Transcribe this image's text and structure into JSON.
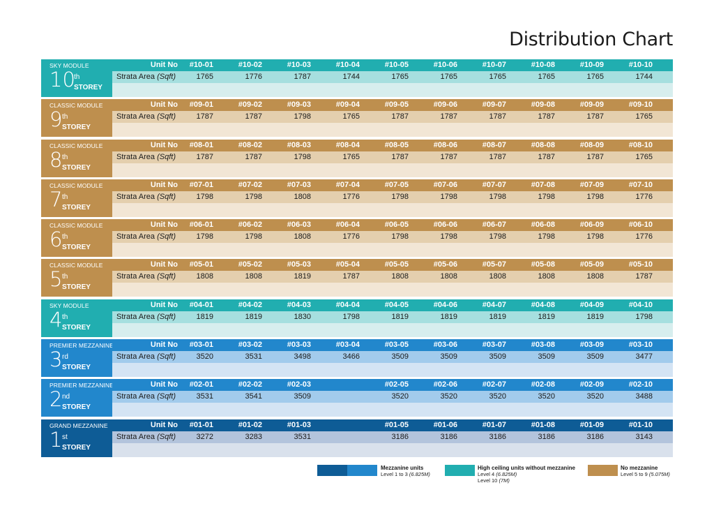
{
  "title": "Distribution Chart",
  "labels": {
    "unit_no": "Unit No",
    "strata_area": "Strata Area ",
    "strata_unit": "(Sqft)",
    "storey_word": "STOREY"
  },
  "colors": {
    "sky": "#21aeb0",
    "classic": "#be8f4e",
    "premier": "#2287cc",
    "grand": "#0e5c96"
  },
  "floors": [
    {
      "theme": "sky",
      "module": "SKY MODULE",
      "num": "10",
      "suffix": "th",
      "units": [
        "#10-01",
        "#10-02",
        "#10-03",
        "#10-04",
        "#10-05",
        "#10-06",
        "#10-07",
        "#10-08",
        "#10-09",
        "#10-10"
      ],
      "areas": [
        "1765",
        "1776",
        "1787",
        "1744",
        "1765",
        "1765",
        "1765",
        "1765",
        "1765",
        "1744"
      ]
    },
    {
      "theme": "classic",
      "module": "CLASSIC MODULE",
      "num": "9",
      "suffix": "th",
      "units": [
        "#09-01",
        "#09-02",
        "#09-03",
        "#09-04",
        "#09-05",
        "#09-06",
        "#09-07",
        "#09-08",
        "#09-09",
        "#09-10"
      ],
      "areas": [
        "1787",
        "1787",
        "1798",
        "1765",
        "1787",
        "1787",
        "1787",
        "1787",
        "1787",
        "1765"
      ]
    },
    {
      "theme": "classic",
      "module": "CLASSIC MODULE",
      "num": "8",
      "suffix": "th",
      "units": [
        "#08-01",
        "#08-02",
        "#08-03",
        "#08-04",
        "#08-05",
        "#08-06",
        "#08-07",
        "#08-08",
        "#08-09",
        "#08-10"
      ],
      "areas": [
        "1787",
        "1787",
        "1798",
        "1765",
        "1787",
        "1787",
        "1787",
        "1787",
        "1787",
        "1765"
      ]
    },
    {
      "theme": "classic",
      "module": "CLASSIC MODULE",
      "num": "7",
      "suffix": "th",
      "units": [
        "#07-01",
        "#07-02",
        "#07-03",
        "#07-04",
        "#07-05",
        "#07-06",
        "#07-07",
        "#07-08",
        "#07-09",
        "#07-10"
      ],
      "areas": [
        "1798",
        "1798",
        "1808",
        "1776",
        "1798",
        "1798",
        "1798",
        "1798",
        "1798",
        "1776"
      ]
    },
    {
      "theme": "classic",
      "module": "CLASSIC MODULE",
      "num": "6",
      "suffix": "th",
      "units": [
        "#06-01",
        "#06-02",
        "#06-03",
        "#06-04",
        "#06-05",
        "#06-06",
        "#06-07",
        "#06-08",
        "#06-09",
        "#06-10"
      ],
      "areas": [
        "1798",
        "1798",
        "1808",
        "1776",
        "1798",
        "1798",
        "1798",
        "1798",
        "1798",
        "1776"
      ]
    },
    {
      "theme": "classic",
      "module": "CLASSIC MODULE",
      "num": "5",
      "suffix": "th",
      "units": [
        "#05-01",
        "#05-02",
        "#05-03",
        "#05-04",
        "#05-05",
        "#05-06",
        "#05-07",
        "#05-08",
        "#05-09",
        "#05-10"
      ],
      "areas": [
        "1808",
        "1808",
        "1819",
        "1787",
        "1808",
        "1808",
        "1808",
        "1808",
        "1808",
        "1787"
      ]
    },
    {
      "theme": "sky",
      "module": "SKY MODULE",
      "num": "4",
      "suffix": "th",
      "units": [
        "#04-01",
        "#04-02",
        "#04-03",
        "#04-04",
        "#04-05",
        "#04-06",
        "#04-07",
        "#04-08",
        "#04-09",
        "#04-10"
      ],
      "areas": [
        "1819",
        "1819",
        "1830",
        "1798",
        "1819",
        "1819",
        "1819",
        "1819",
        "1819",
        "1798"
      ]
    },
    {
      "theme": "premier",
      "module": "PREMIER MEZZANINE",
      "num": "3",
      "suffix": "rd",
      "units": [
        "#03-01",
        "#03-02",
        "#03-03",
        "#03-04",
        "#03-05",
        "#03-06",
        "#03-07",
        "#03-08",
        "#03-09",
        "#03-10"
      ],
      "areas": [
        "3520",
        "3531",
        "3498",
        "3466",
        "3509",
        "3509",
        "3509",
        "3509",
        "3509",
        "3477"
      ]
    },
    {
      "theme": "premier",
      "module": "PREMIER MEZZANINE",
      "num": "2",
      "suffix": "nd",
      "units": [
        "#02-01",
        "#02-02",
        "#02-03",
        "",
        "#02-05",
        "#02-06",
        "#02-07",
        "#02-08",
        "#02-09",
        "#02-10"
      ],
      "areas": [
        "3531",
        "3541",
        "3509",
        "",
        "3520",
        "3520",
        "3520",
        "3520",
        "3520",
        "3488"
      ]
    },
    {
      "theme": "grand",
      "module": "GRAND MEZZANINE",
      "num": "1",
      "suffix": "st",
      "units": [
        "#01-01",
        "#01-02",
        "#01-03",
        "",
        "#01-05",
        "#01-06",
        "#01-07",
        "#01-08",
        "#01-09",
        "#01-10"
      ],
      "areas": [
        "3272",
        "3283",
        "3531",
        "",
        "3186",
        "3186",
        "3186",
        "3186",
        "3186",
        "3143"
      ]
    }
  ],
  "legend": {
    "mezzanine": {
      "title": "Mezzanine units",
      "line1": "Level 1 to 3 ",
      "line1_em": "(6.825M)"
    },
    "high_ceiling": {
      "title": "High ceiling units without mezzanine",
      "line1": "Level 4 ",
      "line1_em": "(6.825M)",
      "line2": "Level 10 ",
      "line2_em": "(7M)"
    },
    "no_mezzanine": {
      "title": "No mezzanine",
      "line1": "Level 5 to 9 ",
      "line1_em": "(5.075M)"
    }
  }
}
